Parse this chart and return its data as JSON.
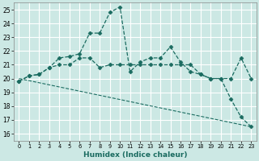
{
  "title": "",
  "xlabel": "Humidex (Indice chaleur)",
  "background_color": "#cce8e4",
  "grid_color": "#ffffff",
  "line_color": "#1a6b60",
  "xlim": [
    -0.5,
    23.5
  ],
  "ylim": [
    15.5,
    25.5
  ],
  "yticks": [
    16,
    17,
    18,
    19,
    20,
    21,
    22,
    23,
    24,
    25
  ],
  "xticks": [
    0,
    1,
    2,
    3,
    4,
    5,
    6,
    7,
    8,
    9,
    10,
    11,
    12,
    13,
    14,
    15,
    16,
    17,
    18,
    19,
    20,
    21,
    22,
    23
  ],
  "series": [
    {
      "x": [
        0,
        1,
        2,
        3,
        4,
        5,
        6,
        7,
        8,
        9,
        10,
        11,
        12,
        13,
        14,
        15,
        16,
        17,
        18,
        19,
        20,
        21,
        22,
        23
      ],
      "y": [
        19.8,
        20.2,
        20.3,
        20.8,
        21.5,
        21.6,
        21.8,
        23.3,
        23.3,
        24.8,
        25.2,
        20.5,
        21.2,
        21.5,
        21.5,
        22.3,
        21.2,
        20.5,
        20.3,
        20.0,
        20.0,
        18.5,
        17.2,
        16.5
      ],
      "style": "--",
      "marker": "D",
      "markersize": 2.5,
      "linewidth": 0.9
    },
    {
      "x": [
        0,
        1,
        2,
        3,
        4,
        5,
        6,
        7,
        8,
        9,
        10,
        11,
        12,
        13,
        14,
        15,
        16,
        17,
        18,
        19,
        20,
        21,
        22,
        23
      ],
      "y": [
        19.8,
        20.2,
        20.3,
        20.8,
        21.0,
        21.0,
        21.5,
        21.5,
        20.8,
        21.0,
        21.0,
        21.0,
        21.0,
        21.0,
        21.0,
        21.0,
        21.0,
        21.0,
        20.3,
        20.0,
        20.0,
        20.0,
        21.5,
        20.0
      ],
      "style": "--",
      "marker": "D",
      "markersize": 2.5,
      "linewidth": 0.9
    },
    {
      "x": [
        0,
        23
      ],
      "y": [
        20.0,
        16.5
      ],
      "style": "--",
      "marker": null,
      "markersize": 0,
      "linewidth": 0.8
    }
  ]
}
